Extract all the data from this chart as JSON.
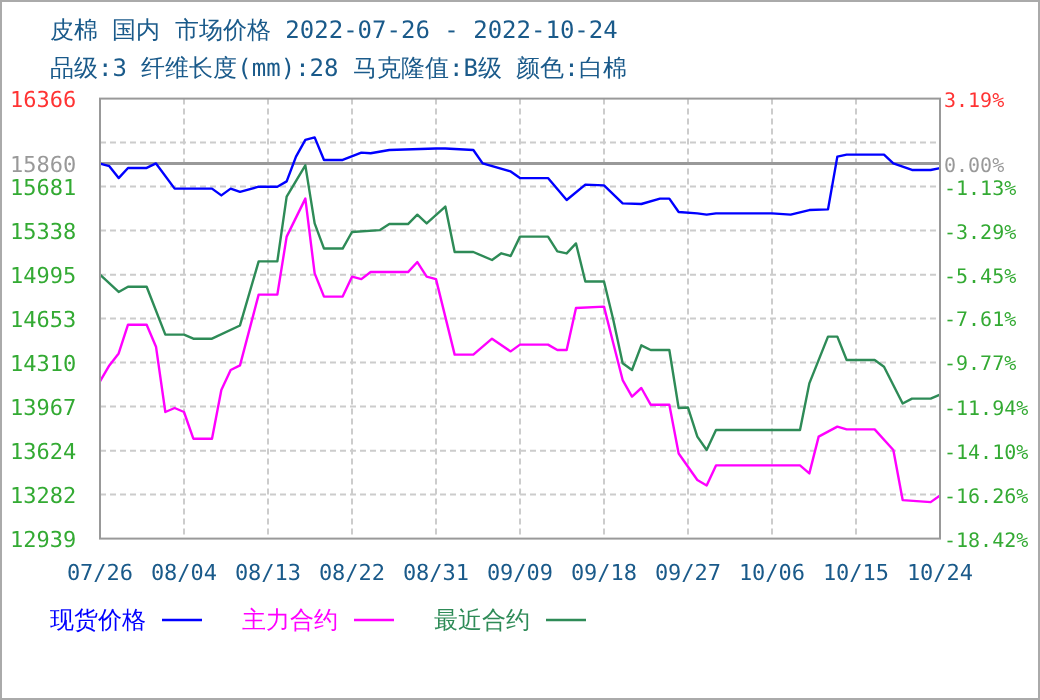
{
  "chart_data": {
    "type": "line",
    "title": "皮棉 国内 市场价格 2022-07-26 - 2022-10-24",
    "subtitle": "品级:3 纤维长度(mm):28 马克隆值:B级 颜色:白棉",
    "xlim": [
      "--07-26",
      "--10-24"
    ],
    "xticks": [
      {
        "value": "--07-26",
        "label": "07/26"
      },
      {
        "value": "--08-04",
        "label": "08/04"
      },
      {
        "value": "--08-13",
        "label": "08/13"
      },
      {
        "value": "--08-22",
        "label": "08/22"
      },
      {
        "value": "--08-31",
        "label": "08/31"
      },
      {
        "value": "--09-09",
        "label": "09/09"
      },
      {
        "value": "--09-18",
        "label": "09/18"
      },
      {
        "value": "--09-27",
        "label": "09/27"
      },
      {
        "value": "--10-06",
        "label": "10/06"
      },
      {
        "value": "--10-15",
        "label": "10/15"
      },
      {
        "value": "--10-24",
        "label": "10/24"
      }
    ],
    "ylim": [
      12939,
      16366
    ],
    "yticks": [
      12939,
      13282,
      13624,
      13967,
      14310,
      14653,
      14995,
      15338,
      15681,
      15860,
      {
        "value": 16024,
        "label": null
      },
      16366
    ],
    "y2lim": [
      -18.42,
      3.19
    ],
    "y2ticks": [
      {
        "value": -18.42,
        "label": "-18.42%"
      },
      {
        "value": -16.26,
        "label": "-16.26%"
      },
      {
        "value": -14.1,
        "label": "-14.10%"
      },
      {
        "value": -11.94,
        "label": "-11.94%"
      },
      {
        "value": -9.77,
        "label": "-9.77%"
      },
      {
        "value": -7.61,
        "label": "-7.61%"
      },
      {
        "value": -5.45,
        "label": "-5.45%"
      },
      {
        "value": -3.29,
        "label": "-3.29%"
      },
      {
        "value": -1.13,
        "label": "-1.13%"
      },
      {
        "value": 0,
        "label": "0.00%"
      },
      {
        "value": 3.19,
        "label": "3.19%"
      }
    ],
    "ref_lines": [
      {
        "axis": "y",
        "value": 15860,
        "color": "#999999"
      }
    ],
    "grid": true,
    "legend": "bottom",
    "line_style": "solid",
    "series": [
      {
        "name": "现货价格",
        "color": "#0000ff",
        "x": [
          "--07-26",
          "--07-27",
          "--07-28",
          "--07-29",
          "--07-31",
          "--08-01",
          "--08-03",
          "--08-07",
          "--08-08",
          "--08-09",
          "--08-10",
          "--08-12",
          "--08-14",
          "--08-15",
          "--08-16",
          "--08-17",
          "--08-18",
          "--08-19",
          "--08-21",
          "--08-23",
          "--08-24",
          "--08-26",
          "--08-31",
          "--09-01",
          "--09-04",
          "--09-05",
          "--09-08",
          "--09-09",
          "--09-12",
          "--09-14",
          "--09-16",
          "--09-18",
          "--09-20",
          "--09-22",
          "--09-24",
          "--09-25",
          "--09-26",
          "--09-28",
          "--09-29",
          "--09-30",
          "--10-06",
          "--10-08",
          "--10-10",
          "--10-12",
          "--10-13",
          "--10-14",
          "--10-18",
          "--10-19",
          "--10-21",
          "--10-23",
          "--10-24"
        ],
        "values": [
          15860,
          15840,
          15747,
          15826,
          15826,
          15861,
          15665,
          15665,
          15612,
          15665,
          15640,
          15680,
          15680,
          15721,
          15914,
          16044,
          16064,
          15888,
          15888,
          15945,
          15940,
          15966,
          15977,
          15977,
          15966,
          15861,
          15799,
          15747,
          15747,
          15576,
          15696,
          15690,
          15550,
          15545,
          15587,
          15587,
          15483,
          15472,
          15462,
          15472,
          15472,
          15462,
          15498,
          15503,
          15914,
          15930,
          15930,
          15861,
          15810,
          15810,
          15825
        ]
      },
      {
        "name": "主力合约",
        "color": "#ff00ff",
        "x": [
          "--07-26",
          "--07-27",
          "--07-28",
          "--07-29",
          "--07-31",
          "--08-01",
          "--08-02",
          "--08-03",
          "--08-04",
          "--08-05",
          "--08-07",
          "--08-08",
          "--08-09",
          "--08-10",
          "--08-12",
          "--08-14",
          "--08-15",
          "--08-17",
          "--08-18",
          "--08-19",
          "--08-21",
          "--08-22",
          "--08-23",
          "--08-24",
          "--08-28",
          "--08-29",
          "--08-30",
          "--08-31",
          "--09-02",
          "--09-04",
          "--09-06",
          "--09-08",
          "--09-09",
          "--09-12",
          "--09-13",
          "--09-14",
          "--09-15",
          "--09-18",
          "--09-19",
          "--09-20",
          "--09-21",
          "--09-22",
          "--09-23",
          "--09-25",
          "--09-26",
          "--09-28",
          "--09-29",
          "--09-30",
          "--10-09",
          "--10-10",
          "--10-11",
          "--10-13",
          "--10-14",
          "--10-17",
          "--10-19",
          "--10-20",
          "--10-23",
          "--10-24"
        ],
        "values": [
          14163,
          14288,
          14381,
          14605,
          14605,
          14434,
          13925,
          13956,
          13925,
          13717,
          13717,
          14096,
          14252,
          14288,
          14839,
          14839,
          15291,
          15587,
          15005,
          14824,
          14824,
          14979,
          14960,
          15015,
          15015,
          15093,
          14979,
          14960,
          14372,
          14372,
          14496,
          14397,
          14450,
          14450,
          14408,
          14408,
          14735,
          14746,
          14459,
          14174,
          14045,
          14112,
          13982,
          13982,
          13602,
          13395,
          13353,
          13509,
          13509,
          13447,
          13733,
          13811,
          13790,
          13790,
          13629,
          13239,
          13223,
          13275
        ]
      },
      {
        "name": "最近合约",
        "color": "#2e8b57",
        "x": [
          "--07-26",
          "--07-28",
          "--07-29",
          "--07-31",
          "--08-02",
          "--08-04",
          "--08-05",
          "--08-07",
          "--08-10",
          "--08-12",
          "--08-14",
          "--08-15",
          "--08-17",
          "--08-18",
          "--08-19",
          "--08-21",
          "--08-22",
          "--08-25",
          "--08-26",
          "--08-28",
          "--08-29",
          "--08-30",
          "--09-01",
          "--09-02",
          "--09-04",
          "--09-06",
          "--09-07",
          "--09-08",
          "--09-09",
          "--09-12",
          "--09-13",
          "--09-14",
          "--09-15",
          "--09-16",
          "--09-18",
          "--09-19",
          "--09-20",
          "--09-21",
          "--09-22",
          "--09-23",
          "--09-25",
          "--09-26",
          "--09-27",
          "--09-28",
          "--09-29",
          "--09-30",
          "--10-09",
          "--10-10",
          "--10-12",
          "--10-13",
          "--10-14",
          "--10-17",
          "--10-18",
          "--10-20",
          "--10-21",
          "--10-23",
          "--10-24"
        ],
        "values": [
          14995,
          14860,
          14901,
          14901,
          14528,
          14528,
          14496,
          14496,
          14599,
          15098,
          15098,
          15603,
          15846,
          15394,
          15198,
          15198,
          15327,
          15342,
          15389,
          15389,
          15462,
          15394,
          15525,
          15171,
          15171,
          15109,
          15161,
          15140,
          15291,
          15291,
          15176,
          15160,
          15238,
          14942,
          14942,
          14641,
          14304,
          14252,
          14444,
          14408,
          14408,
          13956,
          13960,
          13733,
          13629,
          13785,
          13785,
          14148,
          14512,
          14512,
          14330,
          14330,
          14278,
          13991,
          14029,
          14029,
          14060
        ]
      }
    ]
  }
}
